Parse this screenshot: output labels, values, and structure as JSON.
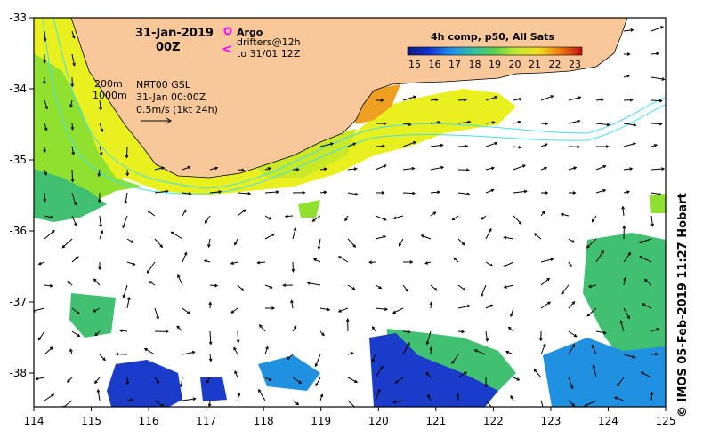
{
  "map": {
    "date_line1": "31-Jan-2019",
    "date_line2": "00Z",
    "argo_label": "Argo",
    "drifters_label": "drifters@12h",
    "drifters_sub": "to 31/01 12Z",
    "contour_200": "200m",
    "contour_1000": "1000m",
    "product": "NRT00 GSL",
    "product_time": "31-Jan 00:00Z",
    "scale_label": "0.5m/s (1kt 24h)",
    "colorbar_title": "4h comp, p50, All Sats",
    "colorbar_ticks": [
      "15",
      "16",
      "17",
      "18",
      "19",
      "20",
      "21",
      "22",
      "23"
    ],
    "lon_ticks": [
      "114",
      "115",
      "116",
      "117",
      "118",
      "119",
      "120",
      "121",
      "122",
      "123",
      "124",
      "125"
    ],
    "lat_ticks": [
      "-33",
      "-34",
      "-35",
      "-36",
      "-37",
      "-38"
    ],
    "credit": "© IMOS 05-Feb-2019 11:27 Hobart",
    "colors": {
      "land": "#f9c89a",
      "isobath": "#40e0f0",
      "argo": "#ff00ff",
      "sst_warm": "#f0a020",
      "sst_yellow": "#e8f020",
      "sst_green": "#90e030",
      "sst_teal": "#40c070",
      "sst_blue": "#2060e0",
      "sst_navy": "#1020a0"
    }
  }
}
